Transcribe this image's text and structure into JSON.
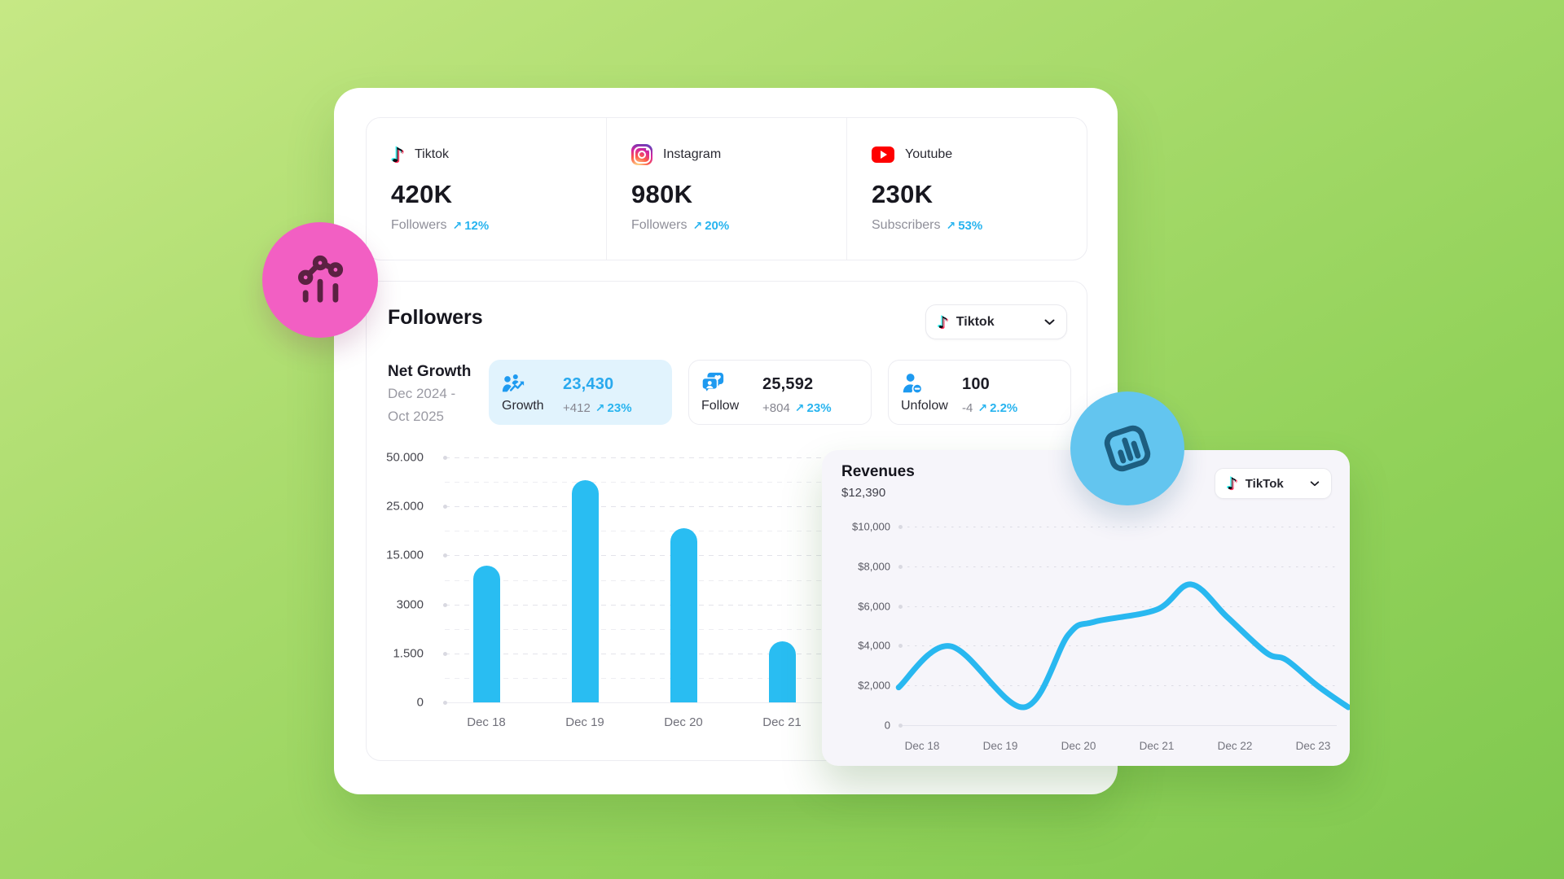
{
  "icons": {
    "tiktok_glyph": "♪",
    "arrow_up_right": "↗"
  },
  "platform_stats": {
    "cards": [
      {
        "platform": "Tiktok",
        "icon": "tiktok-icon",
        "value": "420K",
        "metric": "Followers",
        "change": "12%"
      },
      {
        "platform": "Instagram",
        "icon": "instagram-icon",
        "value": "980K",
        "metric": "Followers",
        "change": "20%"
      },
      {
        "platform": "Youtube",
        "icon": "youtube-icon",
        "value": "230K",
        "metric": "Subscribers",
        "change": "53%"
      }
    ]
  },
  "followers_section": {
    "title": "Followers",
    "dropdown": {
      "label": "Tiktok",
      "icon": "tiktok-icon"
    },
    "net_growth": {
      "title": "Net Growth",
      "period_line1": "Dec 2024 -",
      "period_line2": "Oct 2025"
    },
    "stats": [
      {
        "label": "Growth",
        "value": "23,430",
        "delta": "+412",
        "change": "23%",
        "icon": "growth-icon",
        "highlight": true
      },
      {
        "label": "Follow",
        "value": "25,592",
        "delta": "+804",
        "change": "23%",
        "icon": "follow-icon",
        "highlight": false
      },
      {
        "label": "Unfolow",
        "value": "100",
        "delta": "-4",
        "change": "2.2%",
        "icon": "unfollow-icon",
        "highlight": false
      }
    ]
  },
  "revenue_section": {
    "title": "Revenues",
    "subtitle": "$12,390",
    "dropdown": {
      "label": "TikTok",
      "icon": "tiktok-icon"
    }
  },
  "chart_data": [
    {
      "type": "bar",
      "title": "Followers net growth by day",
      "categories": [
        "Dec 18",
        "Dec 19",
        "Dec 20",
        "Dec 21"
      ],
      "values": [
        14000,
        37500,
        20500,
        1800
      ],
      "height_fractions": [
        0.558,
        0.907,
        0.711,
        0.249
      ],
      "y_ticks": [
        "50.000",
        "25.000",
        "15.000",
        "3000",
        "1.500",
        "0"
      ],
      "bar_color": "#29bdf2",
      "grid": "dashed",
      "legend": "none"
    },
    {
      "type": "line",
      "title": "Revenues",
      "total_label": "$12,390",
      "categories": [
        "Dec 18",
        "Dec 19",
        "Dec 20",
        "Dec 21",
        "Dec 22",
        "Dec 23"
      ],
      "y_ticks": [
        "$10,000",
        "$8,000",
        "$6,000",
        "$4,000",
        "$2,000",
        "0"
      ],
      "ylim": [
        0,
        10000
      ],
      "line_color": "#29b8f0",
      "grid": "dotted",
      "legend": "none",
      "points_day_dollars": [
        [
          -0.3,
          1900
        ],
        [
          0.36,
          3980
        ],
        [
          1.3,
          900
        ],
        [
          1.87,
          4550
        ],
        [
          2.2,
          5200
        ],
        [
          3.0,
          5820
        ],
        [
          3.44,
          7090
        ],
        [
          3.9,
          5450
        ],
        [
          4.4,
          3650
        ],
        [
          4.66,
          3280
        ],
        [
          5.06,
          1970
        ],
        [
          5.45,
          900
        ]
      ]
    }
  ]
}
